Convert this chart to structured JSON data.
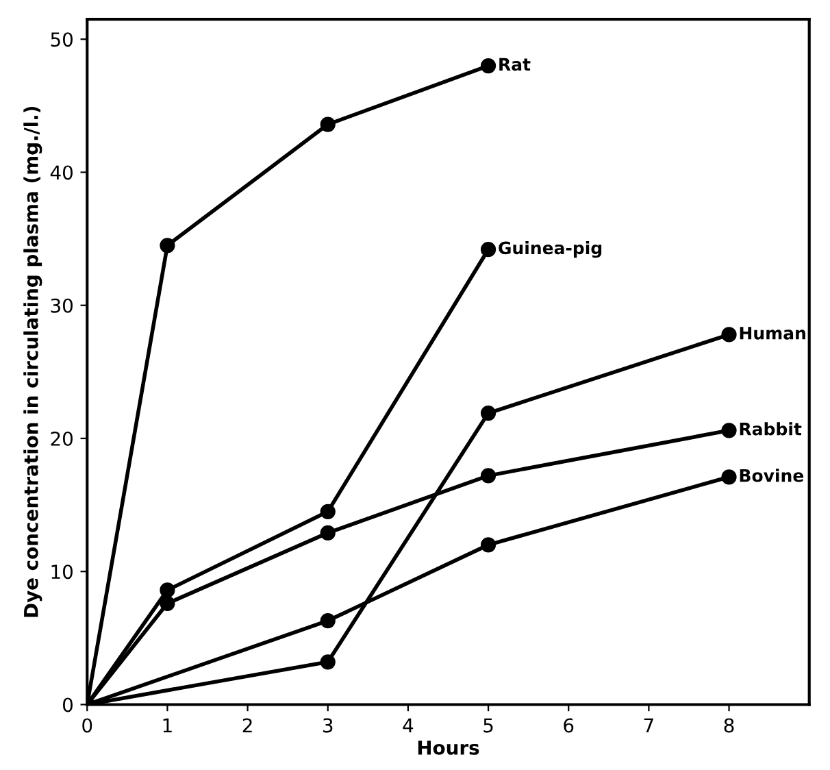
{
  "chart_data": {
    "type": "line",
    "xlabel": "Hours",
    "ylabel": "Dye concentration in circulating plasma (mg./l.)",
    "xlim": [
      0,
      9
    ],
    "ylim": [
      0,
      51.5
    ],
    "xticks": [
      0,
      1,
      2,
      3,
      4,
      5,
      6,
      7,
      8
    ],
    "yticks": [
      0,
      10,
      20,
      30,
      40,
      50
    ],
    "grid": false,
    "legend": false,
    "marker": "circle",
    "line_style": "solid",
    "series": [
      {
        "name": "Rat",
        "color": "#000000",
        "x": [
          0,
          1,
          3,
          5
        ],
        "values": [
          0,
          34.5,
          43.6,
          48
        ]
      },
      {
        "name": "Guinea-pig",
        "color": "#000000",
        "x": [
          0,
          1,
          3,
          5
        ],
        "values": [
          0,
          8.6,
          14.5,
          34.2
        ]
      },
      {
        "name": "Human",
        "color": "#000000",
        "x": [
          0,
          3,
          5,
          8
        ],
        "values": [
          0,
          3.2,
          21.9,
          27.8
        ]
      },
      {
        "name": "Rabbit",
        "color": "#000000",
        "x": [
          0,
          1,
          3,
          5,
          8
        ],
        "values": [
          0,
          7.6,
          12.9,
          17.2,
          20.6
        ]
      },
      {
        "name": "Bovine",
        "color": "#000000",
        "x": [
          0,
          3,
          5,
          8
        ],
        "values": [
          0,
          6.3,
          12,
          17.1
        ]
      }
    ]
  }
}
